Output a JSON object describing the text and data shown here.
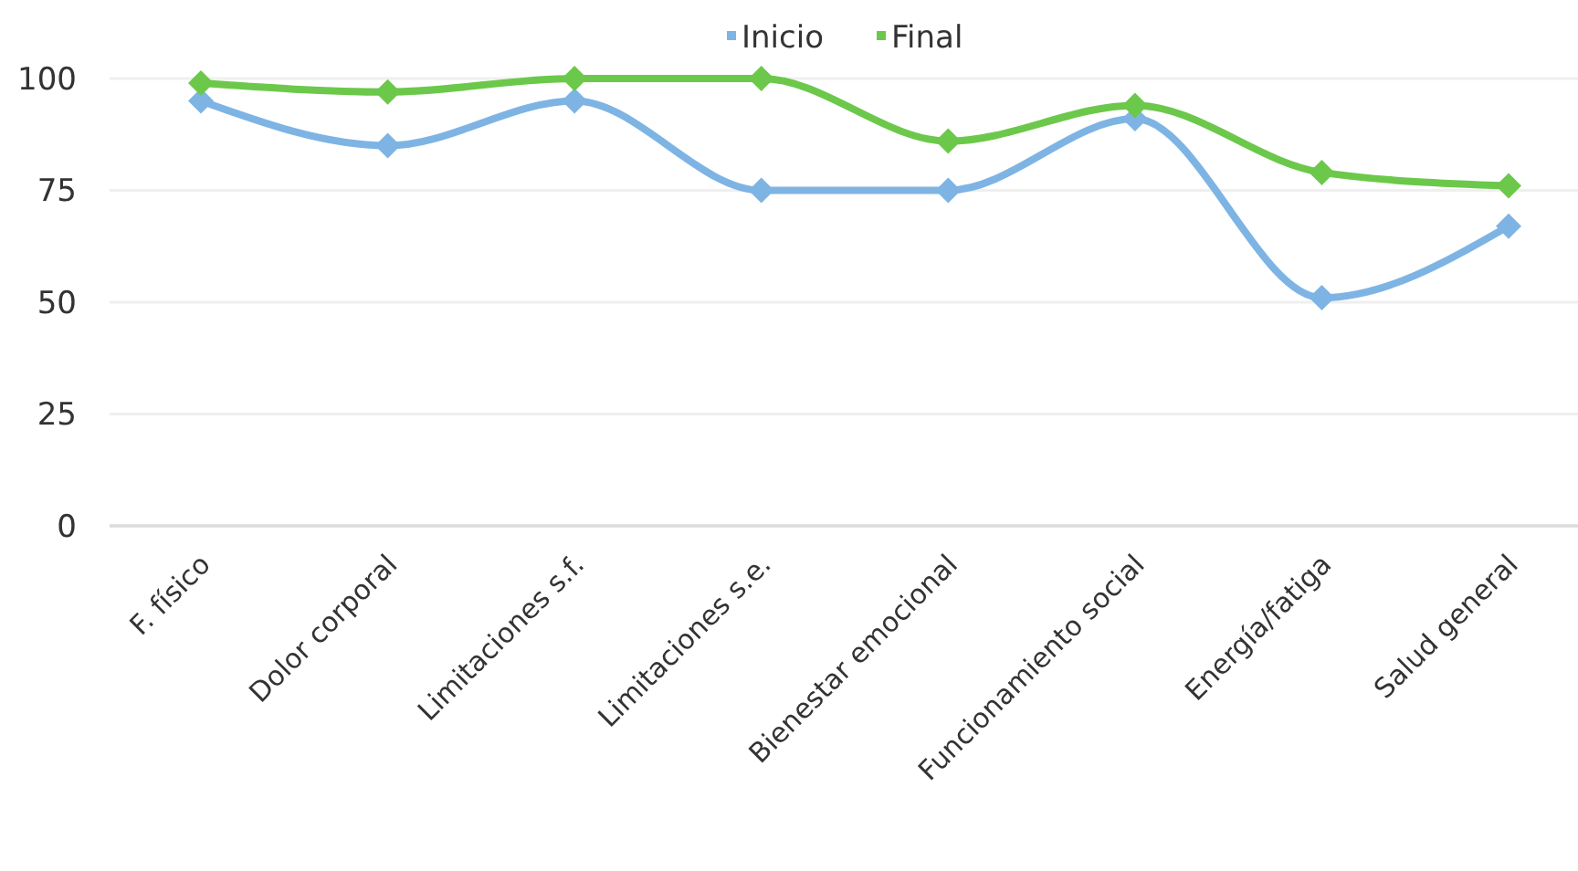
{
  "chart_data": {
    "type": "line",
    "categories": [
      "F. físico",
      "Dolor corporal",
      "Limitaciones s.f.",
      "Limitaciones s.e.",
      "Bienestar emocional",
      "Funcionamiento social",
      "Energía/fatiga",
      "Salud general"
    ],
    "series": [
      {
        "name": "Inicio",
        "color": "#7eb4e4",
        "values": [
          95,
          85,
          95,
          75,
          75,
          91,
          51,
          67
        ]
      },
      {
        "name": "Final",
        "color": "#6cc84a",
        "values": [
          99,
          97,
          100,
          100,
          86,
          94,
          79,
          76
        ]
      }
    ],
    "ylim": [
      0,
      100
    ],
    "yticks": [
      0,
      25,
      50,
      75,
      100
    ],
    "grid": "y",
    "legend": "top",
    "marker": "diamond",
    "line_style": "solid"
  }
}
